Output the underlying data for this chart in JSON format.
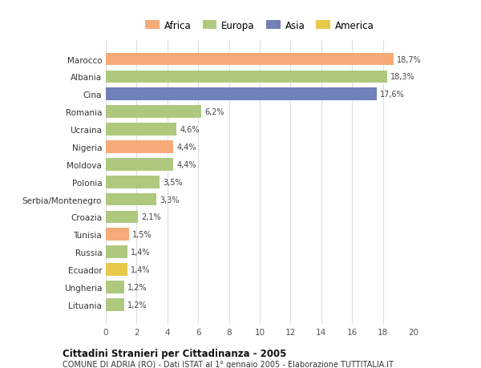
{
  "categories": [
    "Lituania",
    "Ungheria",
    "Ecuador",
    "Russia",
    "Tunisia",
    "Croazia",
    "Serbia/Montenegro",
    "Polonia",
    "Moldova",
    "Nigeria",
    "Ucraina",
    "Romania",
    "Cina",
    "Albania",
    "Marocco"
  ],
  "values": [
    1.2,
    1.2,
    1.4,
    1.4,
    1.5,
    2.1,
    3.3,
    3.5,
    4.4,
    4.4,
    4.6,
    6.2,
    17.6,
    18.3,
    18.7
  ],
  "labels": [
    "1,2%",
    "1,2%",
    "1,4%",
    "1,4%",
    "1,5%",
    "2,1%",
    "3,3%",
    "3,5%",
    "4,4%",
    "4,4%",
    "4,6%",
    "6,2%",
    "17,6%",
    "18,3%",
    "18,7%"
  ],
  "colors": [
    "#aec97e",
    "#aec97e",
    "#e8c84a",
    "#aec97e",
    "#f5aa78",
    "#aec97e",
    "#aec97e",
    "#aec97e",
    "#aec97e",
    "#f5aa78",
    "#aec97e",
    "#aec97e",
    "#7080b8",
    "#aec97e",
    "#f5aa78"
  ],
  "continent_colors": {
    "Africa": "#f5aa78",
    "Europa": "#aec97e",
    "Asia": "#7080b8",
    "America": "#e8c84a"
  },
  "title": "Cittadini Stranieri per Cittadinanza - 2005",
  "subtitle": "COMUNE DI ADRIA (RO) - Dati ISTAT al 1° gennaio 2005 - Elaborazione TUTTITALIA.IT",
  "xlim": [
    0,
    20
  ],
  "xticks": [
    0,
    2,
    4,
    6,
    8,
    10,
    12,
    14,
    16,
    18,
    20
  ],
  "background_color": "#ffffff",
  "grid_color": "#dddddd",
  "bar_height": 0.72
}
